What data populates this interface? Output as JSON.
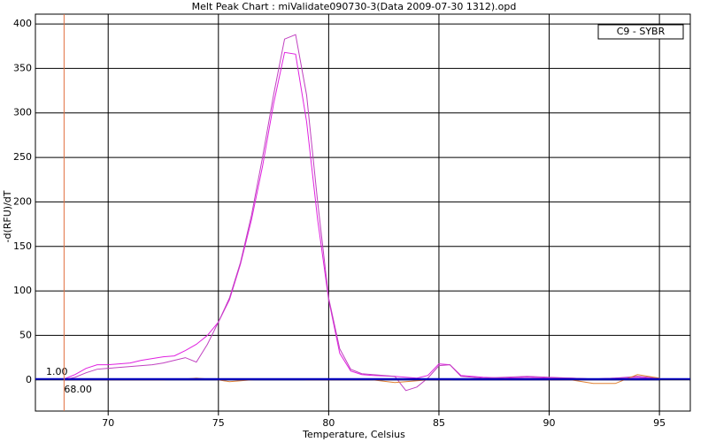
{
  "chart_data": {
    "type": "line",
    "title": "Melt Peak Chart : miValidate090730-3(Data 2009-07-30 1312).opd",
    "x_label": "Temperature, Celsius",
    "y_label": "-d(RFU)/dT",
    "legend": "C9 - SYBR",
    "x": [
      68,
      68.5,
      69,
      69.5,
      70,
      70.5,
      71,
      71.5,
      72,
      72.5,
      73,
      73.5,
      74,
      74.5,
      75,
      75.5,
      76,
      76.5,
      77,
      77.5,
      78,
      78.5,
      79,
      79.5,
      80,
      80.5,
      81,
      81.5,
      82,
      83,
      83.5,
      84,
      84.5,
      85,
      85.5,
      86,
      87,
      88,
      89,
      90,
      91,
      92,
      93,
      94,
      95
    ],
    "series": [
      {
        "color": "#e020e0",
        "values": [
          1,
          6,
          13,
          17,
          17,
          18,
          19,
          22,
          24,
          26,
          27,
          33,
          40,
          50,
          65,
          90,
          130,
          180,
          240,
          310,
          368,
          366,
          290,
          180,
          90,
          30,
          10,
          6,
          5,
          4,
          3,
          2,
          5,
          18,
          17,
          5,
          3,
          2,
          3,
          2,
          2,
          1,
          2,
          3,
          1
        ]
      },
      {
        "color": "#c040c0",
        "values": [
          0,
          3,
          8,
          12,
          13,
          14,
          15,
          16,
          17,
          19,
          22,
          25,
          20,
          40,
          65,
          92,
          132,
          185,
          250,
          320,
          383,
          388,
          320,
          200,
          92,
          35,
          12,
          7,
          6,
          4,
          -12,
          -8,
          2,
          16,
          17,
          4,
          2,
          3,
          4,
          3,
          2,
          1,
          2,
          4,
          2
        ]
      },
      {
        "color": "#e08030",
        "values": [
          0,
          0,
          0,
          0,
          0,
          0,
          0,
          0,
          0,
          0,
          1,
          1,
          2,
          1,
          0,
          -2,
          -1,
          0,
          1,
          1,
          1,
          1,
          0,
          0,
          0,
          0,
          0,
          0,
          0,
          -3,
          -2,
          -1,
          0,
          0,
          0,
          1,
          1,
          0,
          1,
          0,
          0,
          -4,
          -4,
          6,
          2
        ]
      },
      {
        "color": "#000080",
        "values": [
          0,
          0,
          0,
          0,
          0,
          0,
          0,
          0,
          0,
          0,
          0,
          0,
          0,
          0,
          0,
          0,
          0,
          0,
          0,
          0,
          0,
          0,
          0,
          0,
          0,
          0,
          0,
          0,
          0,
          0,
          0,
          0,
          0,
          0,
          0,
          0,
          0,
          0,
          0,
          0,
          0,
          0,
          0,
          0,
          0
        ]
      }
    ],
    "threshold": {
      "value": 1,
      "label": "1.00",
      "color": "#0000c0"
    },
    "marker": {
      "value": 68,
      "label": "68.00",
      "color": "#e07040"
    },
    "xlim": [
      66.7,
      96.4
    ],
    "ylim": [
      -35,
      411
    ],
    "xticks": [
      70,
      75,
      80,
      85,
      90,
      95
    ],
    "yticks": [
      0,
      50,
      100,
      150,
      200,
      250,
      300,
      350,
      400
    ],
    "grid": true
  }
}
